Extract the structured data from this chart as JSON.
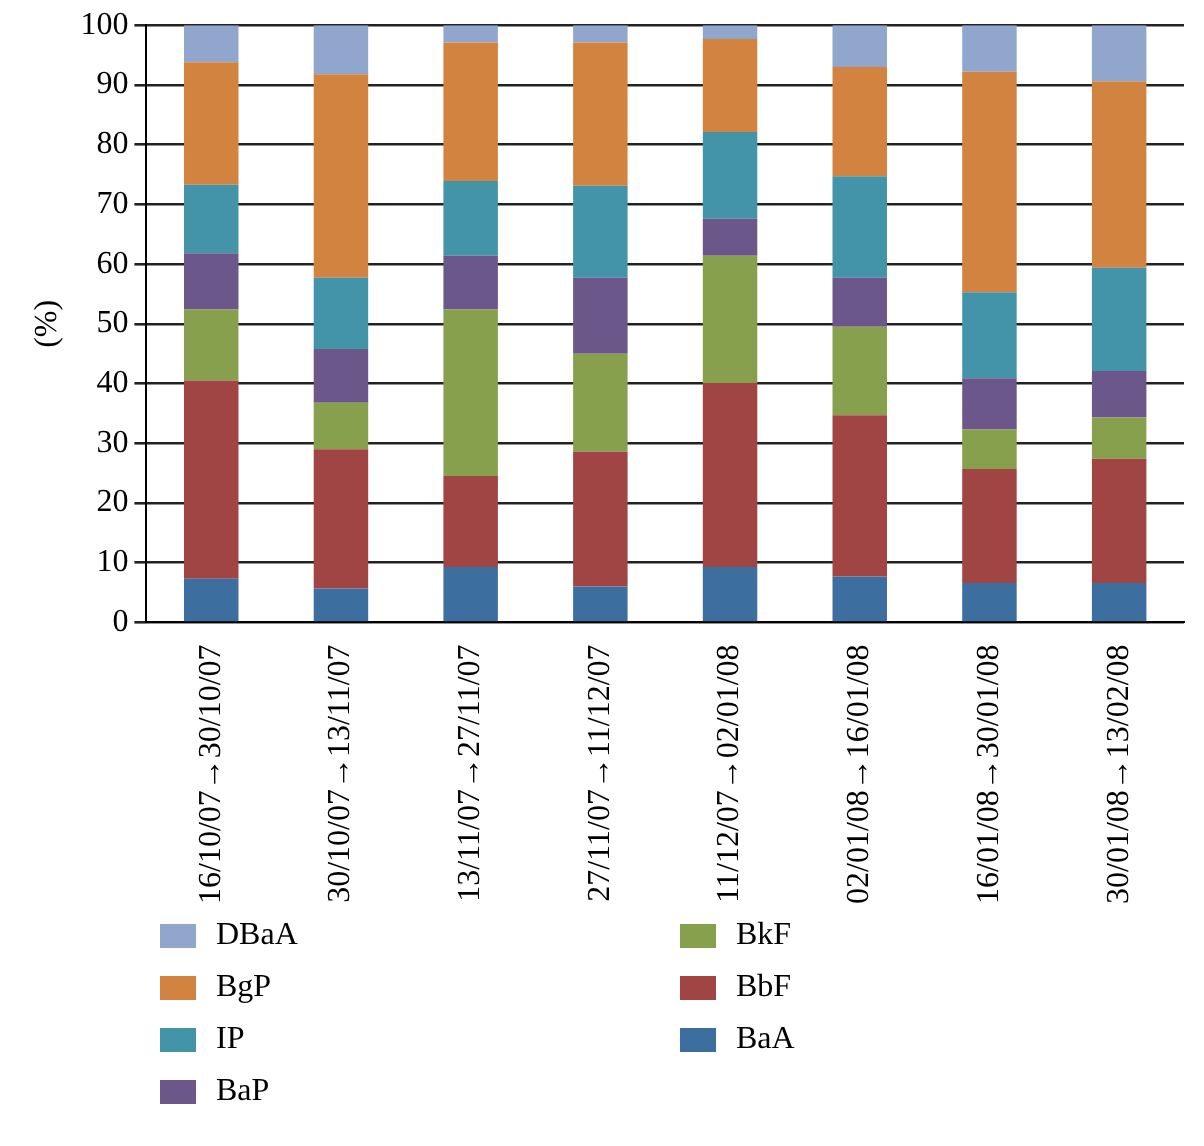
{
  "chart_data": {
    "type": "bar",
    "stacked": true,
    "ylabel": "(%)",
    "categories": [
      "16/10/07→30/10/07",
      "30/10/07→13/11/07",
      "13/11/07→27/11/07",
      "27/11/07→11/12/07",
      "11/12/07→02/01/08",
      "02/01/08→16/01/08",
      "16/01/08→30/01/08",
      "30/01/08→13/02/08"
    ],
    "series": [
      {
        "name": "BaA",
        "color": "#3c6e9f",
        "values": [
          7.3,
          5.7,
          9.3,
          6.0,
          9.3,
          7.7,
          6.6,
          6.6
        ]
      },
      {
        "name": "BbF",
        "color": "#a04444",
        "values": [
          33.2,
          23.3,
          15.2,
          22.6,
          30.8,
          27.0,
          19.1,
          20.8
        ]
      },
      {
        "name": "BkF",
        "color": "#86a04e",
        "values": [
          11.9,
          7.8,
          27.9,
          16.4,
          21.3,
          14.8,
          6.6,
          6.9
        ]
      },
      {
        "name": "BaP",
        "color": "#6c578b",
        "values": [
          9.4,
          9.0,
          9.0,
          12.7,
          6.2,
          8.2,
          8.6,
          7.8
        ]
      },
      {
        "name": "IP",
        "color": "#4394a8",
        "values": [
          11.5,
          11.9,
          12.5,
          15.4,
          14.5,
          17.0,
          14.4,
          17.3
        ]
      },
      {
        "name": "BgP",
        "color": "#d38340",
        "values": [
          20.5,
          34.1,
          23.2,
          24.0,
          15.6,
          18.3,
          36.9,
          31.2
        ]
      },
      {
        "name": "DBaA",
        "color": "#91a6cc",
        "values": [
          6.2,
          8.2,
          2.9,
          2.9,
          2.3,
          7.0,
          7.8,
          9.4
        ]
      }
    ],
    "ylim": [
      0,
      100
    ],
    "yticks": [
      0,
      10,
      20,
      30,
      40,
      50,
      60,
      70,
      80,
      90,
      100
    ],
    "grid": "y",
    "legend": "bottom"
  }
}
